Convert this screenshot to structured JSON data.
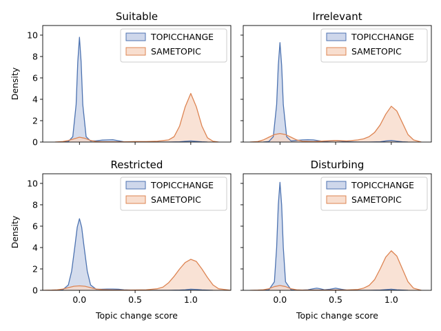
{
  "chart_data": {
    "type": "area",
    "x_label": "Topic change score",
    "y_label": "Density",
    "x_ticks": [
      "0.0",
      "0.5",
      "1.0"
    ],
    "y_ticks": [
      "0",
      "2",
      "4",
      "6",
      "8",
      "10"
    ],
    "xlim": [
      -0.33,
      1.36
    ],
    "ylim": [
      0,
      10.9
    ],
    "series_styles": [
      {
        "name": "TOPICCHANGE",
        "color": "#4c72b0",
        "fill": "#c6d0e7"
      },
      {
        "name": "SAMETOPIC",
        "color": "#dd8452",
        "fill": "#f7d8c7"
      }
    ],
    "panels": [
      {
        "title": "Suitable",
        "series": [
          {
            "name": "TOPICCHANGE",
            "x": [
              -0.15,
              -0.1,
              -0.06,
              -0.03,
              -0.015,
              0,
              0.015,
              0.03,
              0.06,
              0.1,
              0.15,
              0.2,
              0.25,
              0.3,
              0.35,
              0.4,
              0.5,
              0.6,
              0.7,
              0.8,
              0.9,
              0.95,
              1.0,
              1.05,
              1.1,
              1.15
            ],
            "y": [
              0,
              0.05,
              0.5,
              3.5,
              7.5,
              9.8,
              7.5,
              3.5,
              0.5,
              0.1,
              0.12,
              0.18,
              0.2,
              0.22,
              0.12,
              0.02,
              0.01,
              0,
              0,
              0,
              0.02,
              0.07,
              0.1,
              0.06,
              0.02,
              0
            ]
          },
          {
            "name": "SAMETOPIC",
            "x": [
              -0.22,
              -0.15,
              -0.1,
              -0.05,
              0,
              0.05,
              0.1,
              0.15,
              0.2,
              0.3,
              0.4,
              0.5,
              0.6,
              0.7,
              0.8,
              0.85,
              0.9,
              0.95,
              1.0,
              1.05,
              1.1,
              1.15,
              1.2,
              1.25
            ],
            "y": [
              0,
              0.05,
              0.15,
              0.3,
              0.45,
              0.35,
              0.15,
              0.05,
              0.03,
              0.02,
              0.02,
              0.05,
              0.05,
              0.08,
              0.2,
              0.5,
              1.5,
              3.3,
              4.55,
              3.3,
              1.5,
              0.4,
              0.08,
              0
            ]
          }
        ]
      },
      {
        "title": "Irrelevant",
        "series": [
          {
            "name": "TOPICCHANGE",
            "x": [
              -0.15,
              -0.1,
              -0.06,
              -0.03,
              -0.015,
              0,
              0.015,
              0.03,
              0.06,
              0.1,
              0.15,
              0.2,
              0.25,
              0.3,
              0.35,
              0.4,
              0.5,
              0.6,
              0.7,
              0.8,
              0.9,
              0.95,
              1.0,
              1.05,
              1.1,
              1.15
            ],
            "y": [
              0,
              0.05,
              0.5,
              3.5,
              7.2,
              9.3,
              7.2,
              3.5,
              0.5,
              0.1,
              0.15,
              0.2,
              0.22,
              0.2,
              0.12,
              0.05,
              0.15,
              0.03,
              0,
              0,
              0.02,
              0.1,
              0.15,
              0.08,
              0.02,
              0
            ]
          },
          {
            "name": "SAMETOPIC",
            "x": [
              -0.27,
              -0.2,
              -0.15,
              -0.1,
              -0.05,
              0,
              0.05,
              0.1,
              0.15,
              0.2,
              0.3,
              0.4,
              0.5,
              0.6,
              0.7,
              0.75,
              0.8,
              0.85,
              0.9,
              0.95,
              1.0,
              1.05,
              1.1,
              1.15,
              1.2,
              1.27
            ],
            "y": [
              0,
              0.05,
              0.2,
              0.45,
              0.7,
              0.8,
              0.7,
              0.45,
              0.2,
              0.08,
              0.05,
              0.1,
              0.15,
              0.1,
              0.2,
              0.3,
              0.5,
              0.9,
              1.6,
              2.6,
              3.35,
              2.9,
              1.8,
              0.7,
              0.2,
              0
            ]
          }
        ]
      },
      {
        "title": "Restricted",
        "series": [
          {
            "name": "TOPICCHANGE",
            "x": [
              -0.2,
              -0.15,
              -0.1,
              -0.07,
              -0.04,
              -0.02,
              0,
              0.02,
              0.04,
              0.07,
              0.1,
              0.15,
              0.2,
              0.25,
              0.3,
              0.35,
              0.4,
              0.5,
              0.6,
              0.7,
              0.8,
              0.9,
              0.95,
              1.0,
              1.05,
              1.1,
              1.2
            ],
            "y": [
              0,
              0.05,
              0.5,
              1.8,
              4.2,
              5.9,
              6.7,
              5.9,
              4.2,
              1.8,
              0.5,
              0.1,
              0.1,
              0.12,
              0.12,
              0.1,
              0.05,
              0.01,
              0,
              0,
              0,
              0.02,
              0.05,
              0.1,
              0.08,
              0.04,
              0
            ]
          },
          {
            "name": "SAMETOPIC",
            "x": [
              -0.33,
              -0.25,
              -0.2,
              -0.15,
              -0.1,
              -0.05,
              0,
              0.05,
              0.1,
              0.15,
              0.2,
              0.3,
              0.4,
              0.5,
              0.6,
              0.7,
              0.75,
              0.8,
              0.85,
              0.9,
              0.95,
              1.0,
              1.05,
              1.1,
              1.15,
              1.2,
              1.25,
              1.36
            ],
            "y": [
              0,
              0.02,
              0.05,
              0.12,
              0.25,
              0.38,
              0.42,
              0.38,
              0.25,
              0.12,
              0.06,
              0.03,
              0.02,
              0.03,
              0.05,
              0.15,
              0.3,
              0.7,
              1.3,
              2.0,
              2.6,
              2.9,
              2.7,
              2.0,
              1.2,
              0.5,
              0.15,
              0
            ]
          }
        ]
      },
      {
        "title": "Disturbing",
        "series": [
          {
            "name": "TOPICCHANGE",
            "x": [
              -0.15,
              -0.1,
              -0.05,
              -0.03,
              -0.015,
              0,
              0.015,
              0.03,
              0.05,
              0.1,
              0.15,
              0.2,
              0.25,
              0.3,
              0.33,
              0.36,
              0.4,
              0.45,
              0.5,
              0.55,
              0.6,
              0.7,
              0.8,
              0.9,
              0.95,
              1.0,
              1.05,
              1.15
            ],
            "y": [
              0,
              0.05,
              0.8,
              4.0,
              8.0,
              10.1,
              8.0,
              4.0,
              0.8,
              0.05,
              0.02,
              0.02,
              0.05,
              0.15,
              0.2,
              0.15,
              0.05,
              0.1,
              0.2,
              0.1,
              0.02,
              0,
              0,
              0.02,
              0.06,
              0.1,
              0.05,
              0
            ]
          },
          {
            "name": "SAMETOPIC",
            "x": [
              -0.27,
              -0.2,
              -0.15,
              -0.1,
              -0.05,
              0,
              0.05,
              0.1,
              0.15,
              0.2,
              0.3,
              0.4,
              0.5,
              0.6,
              0.7,
              0.75,
              0.8,
              0.85,
              0.9,
              0.95,
              1.0,
              1.05,
              1.1,
              1.15,
              1.2,
              1.27
            ],
            "y": [
              0,
              0.02,
              0.05,
              0.15,
              0.35,
              0.45,
              0.35,
              0.15,
              0.05,
              0.02,
              0.02,
              0.02,
              0.03,
              0.03,
              0.08,
              0.2,
              0.45,
              1.0,
              2.0,
              3.1,
              3.7,
              3.2,
              2.0,
              0.8,
              0.2,
              0
            ]
          }
        ]
      }
    ]
  }
}
